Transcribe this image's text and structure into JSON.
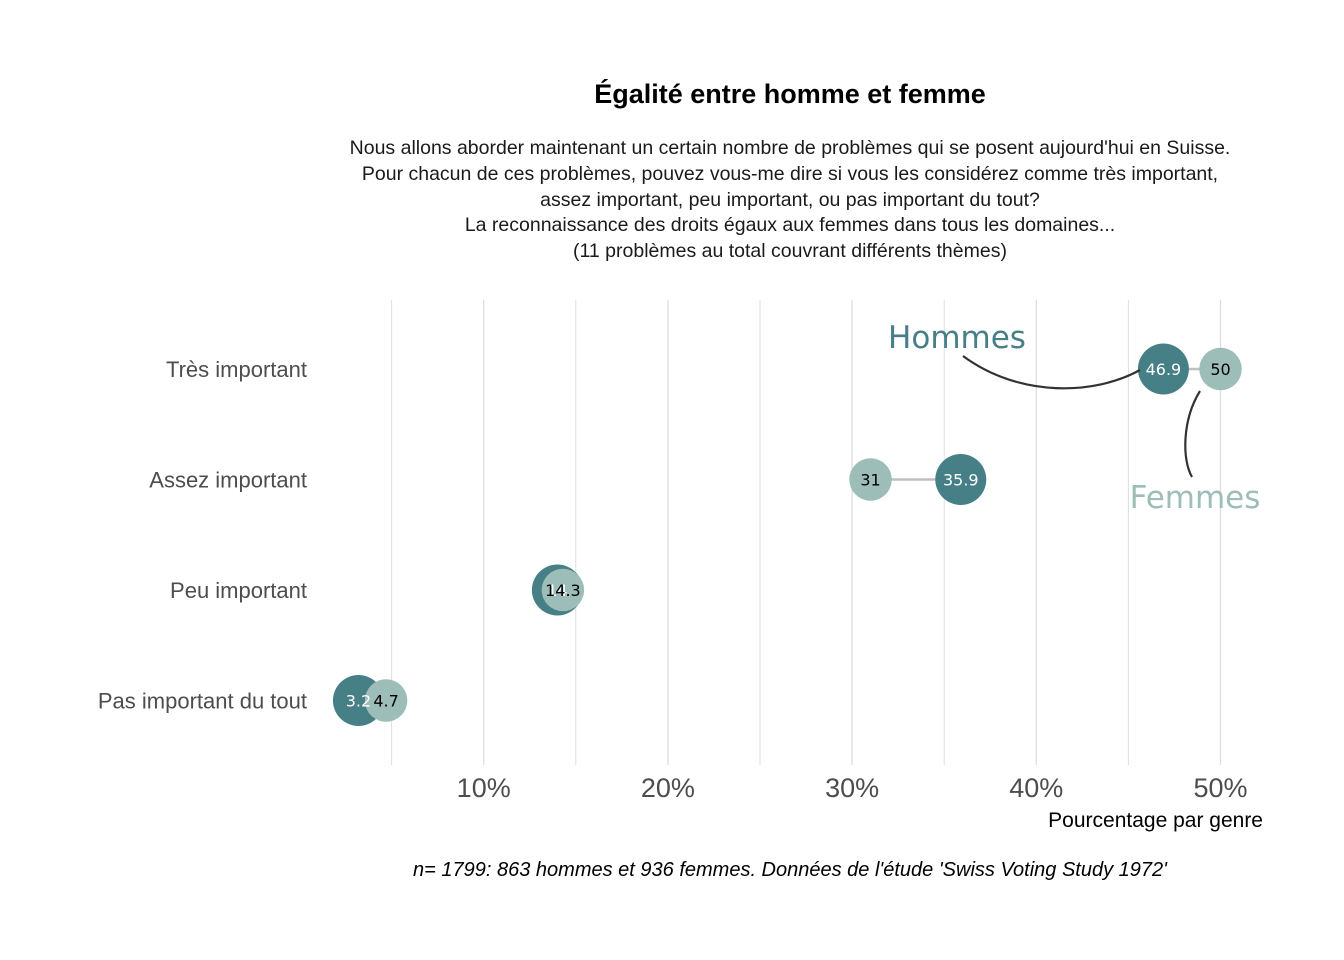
{
  "chart_data": {
    "type": "dumbbell",
    "title": "Égalité entre homme et femme",
    "subtitle": [
      "Nous allons aborder maintenant un certain nombre de problèmes qui se posent aujourd'hui en Suisse.",
      "Pour chacun de ces problèmes, pouvez vous-me dire si vous les considérez comme très important,",
      "assez important, peu important, ou pas important du tout?",
      "La reconnaissance des droits égaux aux femmes dans tous les domaines...",
      "(11 problèmes au total couvrant différents thèmes)"
    ],
    "xlabel": "Pourcentage par genre",
    "caption": "n= 1799: 863 hommes et 936 femmes. Données de l'étude 'Swiss Voting Study 1972'",
    "xlim": [
      0,
      52
    ],
    "xticks": [
      10,
      20,
      30,
      40,
      50
    ],
    "xtick_labels": [
      "10%",
      "20%",
      "30%",
      "40%",
      "50%"
    ],
    "grid": true,
    "categories": [
      "Très important",
      "Assez important",
      "Peu important",
      "Pas important du tout"
    ],
    "series": [
      {
        "name": "Hommes",
        "values": [
          46.9,
          35.9,
          14,
          3.2
        ],
        "labels": [
          "46.9",
          "35.9",
          "14",
          "3.2"
        ],
        "color": "#477f86",
        "label_color": "#ffffff"
      },
      {
        "name": "Femmes",
        "values": [
          50,
          31,
          14.3,
          4.7
        ],
        "labels": [
          "50",
          "31",
          "14.3",
          "4.7"
        ],
        "color": "#9dbdb8",
        "label_color": "#000000"
      }
    ],
    "connector_color": "#bfbfbf",
    "gridline_color": "#dedede"
  }
}
